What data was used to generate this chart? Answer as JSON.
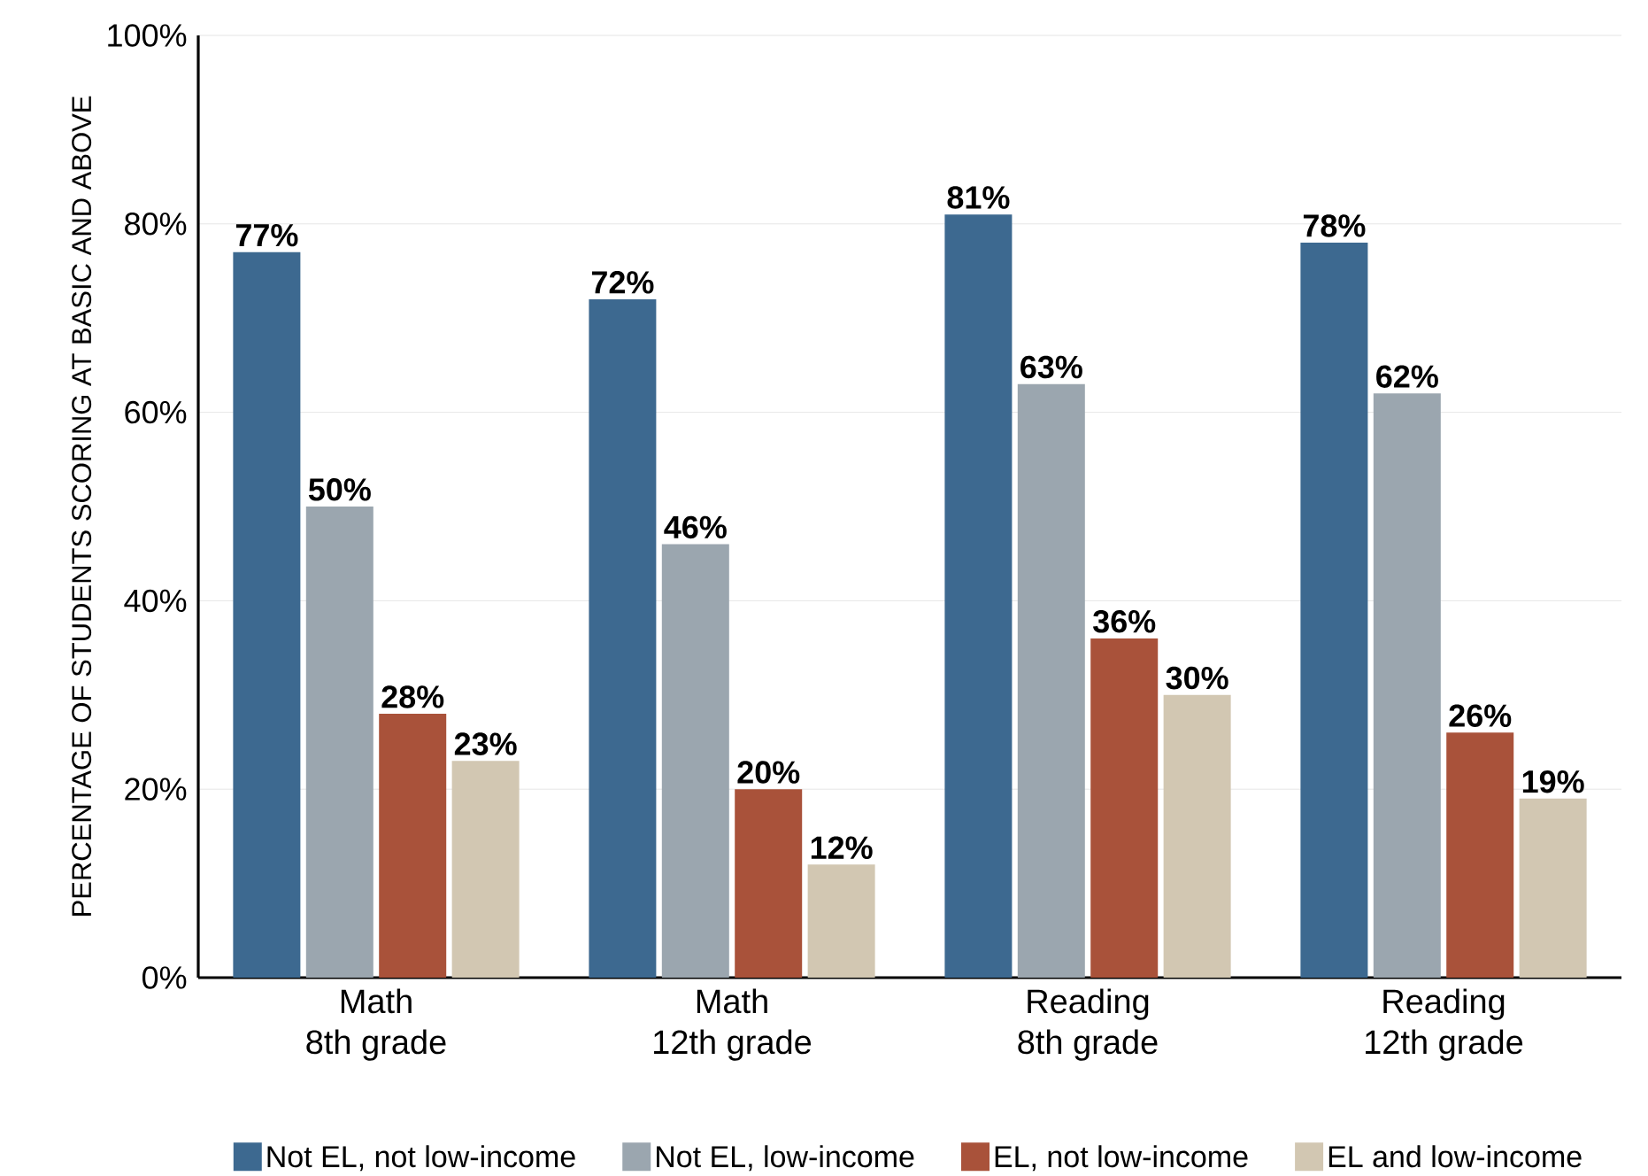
{
  "chart_data": {
    "type": "bar",
    "ylabel": "PERCENTAGE OF STUDENTS SCORING AT BASIC AND ABOVE",
    "categories": [
      "Math\n8th grade",
      "Math\n12th grade",
      "Reading\n8th grade",
      "Reading\n12th grade"
    ],
    "series": [
      {
        "name": "Not EL, not low-income",
        "color": "#3d6990",
        "values": [
          77,
          72,
          81,
          78
        ],
        "value_labels": [
          "77%",
          "72%",
          "81%",
          "78%"
        ]
      },
      {
        "name": "Not EL, low-income",
        "color": "#9ba6af",
        "values": [
          50,
          46,
          63,
          62
        ],
        "value_labels": [
          "50%",
          "46%",
          "63%",
          "62%"
        ]
      },
      {
        "name": "EL, not low-income",
        "color": "#a9523a",
        "values": [
          28,
          20,
          36,
          26
        ],
        "value_labels": [
          "28%",
          "20%",
          "36%",
          "26%"
        ]
      },
      {
        "name": "EL and low-income",
        "color": "#d2c7b2",
        "values": [
          23,
          12,
          30,
          19
        ],
        "value_labels": [
          "23%",
          "12%",
          "30%",
          "19%"
        ]
      }
    ],
    "ylim": [
      0,
      100
    ],
    "yticks": [
      {
        "value": 0,
        "label": "0%"
      },
      {
        "value": 20,
        "label": "20%"
      },
      {
        "value": 40,
        "label": "40%"
      },
      {
        "value": 60,
        "label": "60%"
      },
      {
        "value": 80,
        "label": "80%"
      },
      {
        "value": 100,
        "label": "100%"
      }
    ],
    "grid": "y",
    "legend": "bottom"
  }
}
